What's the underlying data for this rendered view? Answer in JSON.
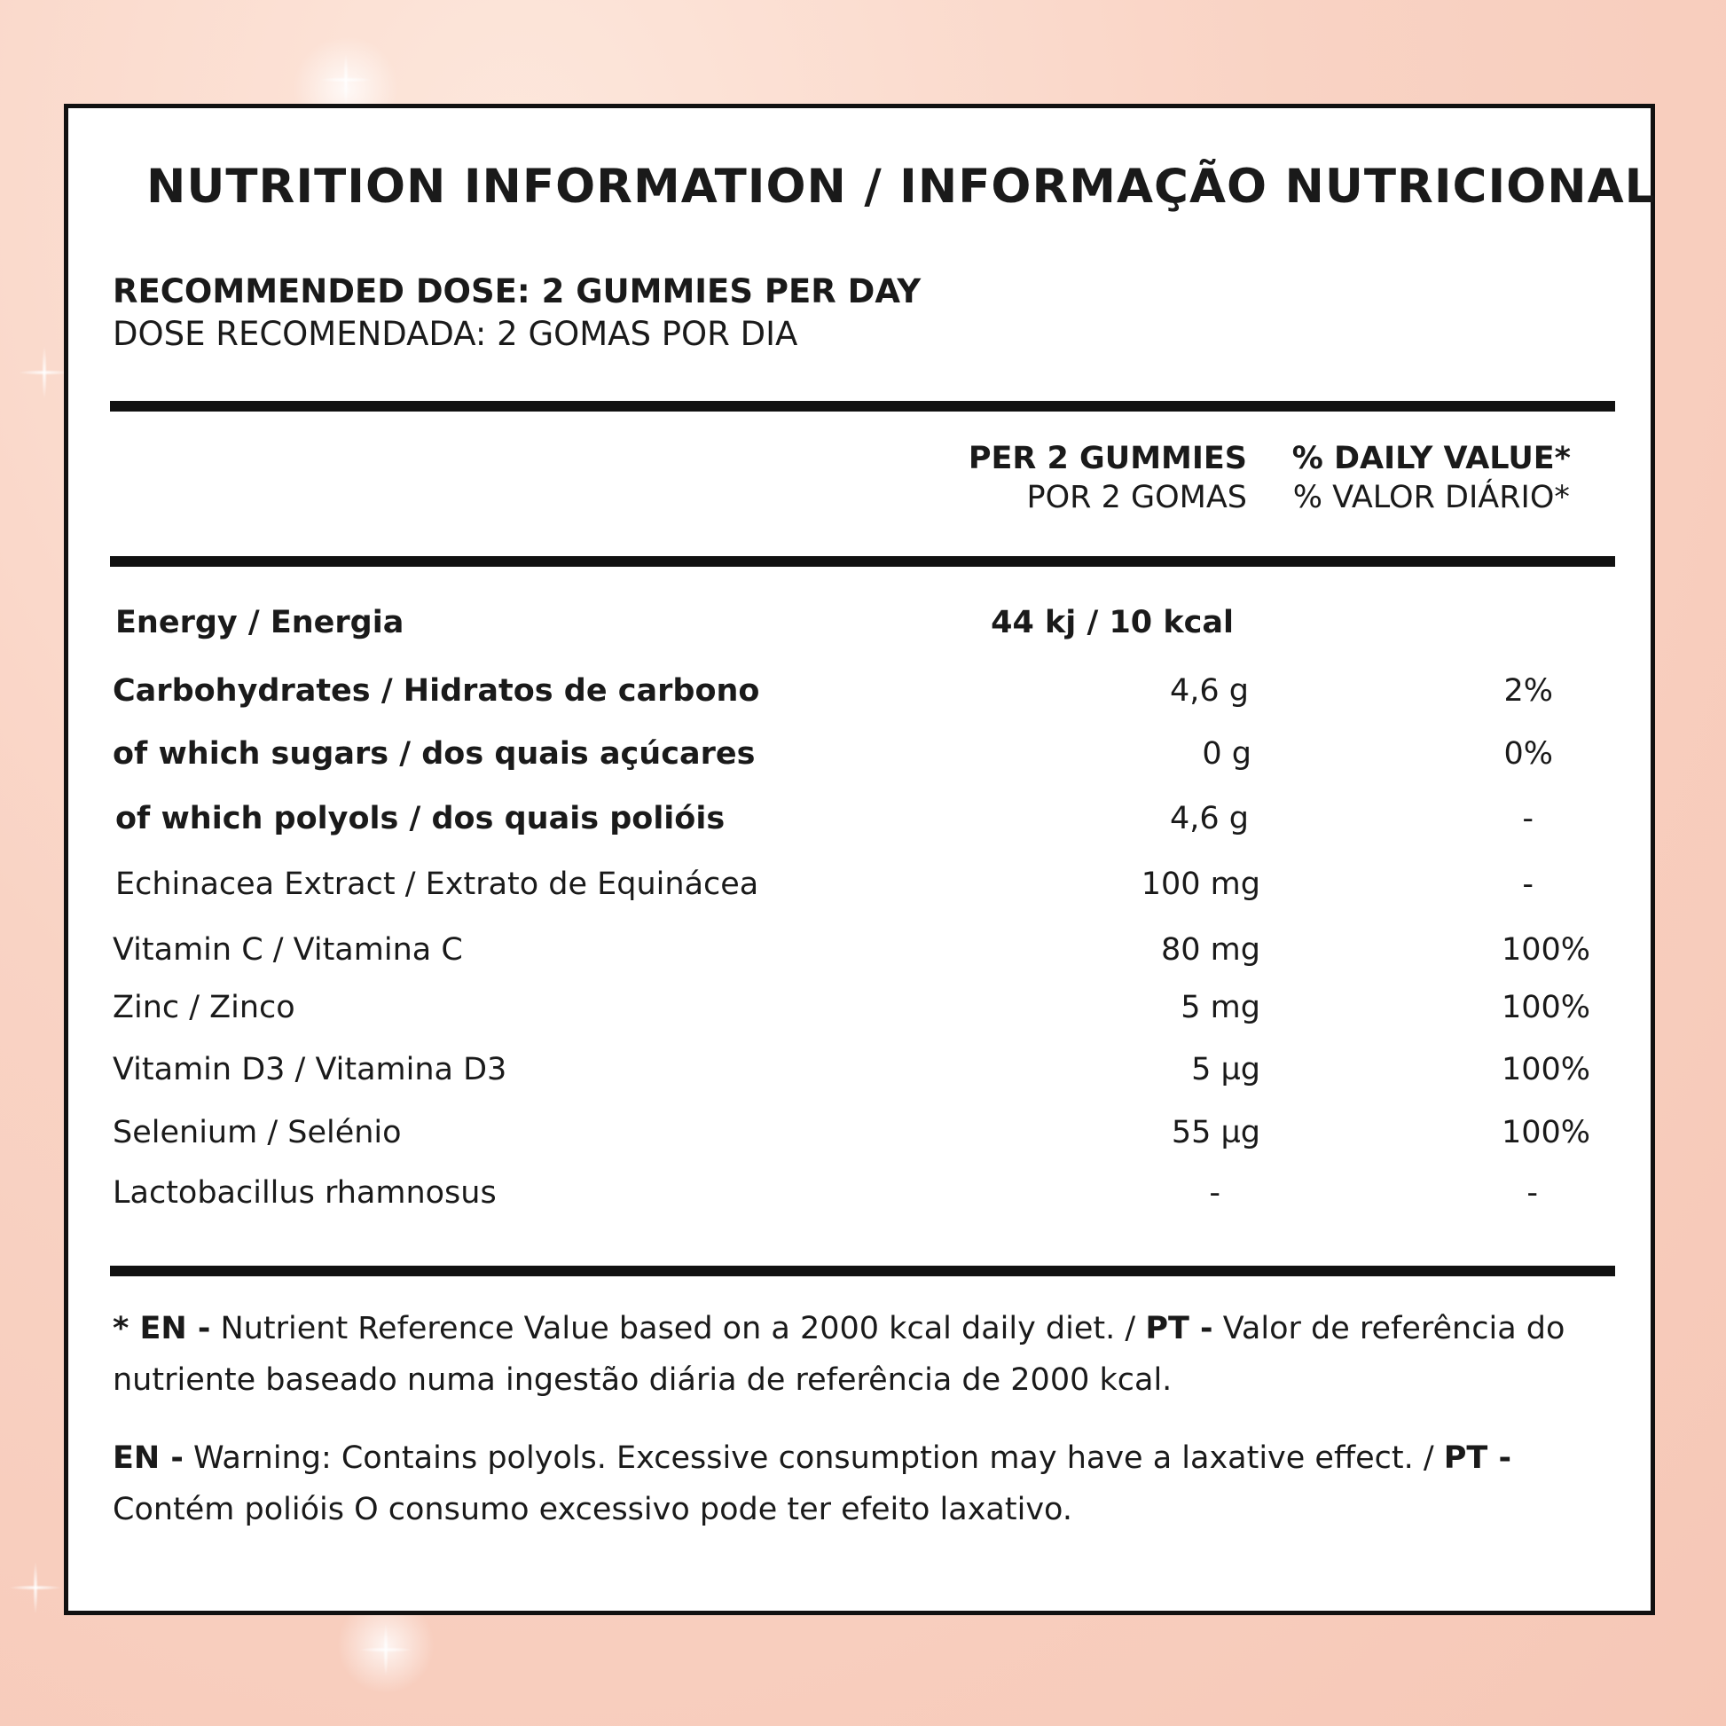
{
  "title": "NUTRITION INFORMATION / INFORMAÇÃO NUTRICIONAL",
  "dose": {
    "en": "RECOMMENDED DOSE: 2 GUMMIES PER DAY",
    "pt": "DOSE RECOMENDADA: 2 GOMAS POR DIA"
  },
  "columns": {
    "per_en": "PER 2 GUMMIES",
    "per_pt": "POR 2 GOMAS",
    "dv_en": "% DAILY VALUE*",
    "dv_pt": "% VALOR DIÁRIO*"
  },
  "rows": [
    {
      "name": "Energy / Energia",
      "amount": "44 kj / 10 kcal",
      "dv": ""
    },
    {
      "name": "Carbohydrates / Hidratos de carbono",
      "amount": "4,6 g",
      "dv": "2%"
    },
    {
      "name": "of which sugars / dos quais açúcares",
      "amount": "0 g",
      "dv": "0%"
    },
    {
      "name": "of which polyols / dos quais polióis",
      "amount": "4,6 g",
      "dv": "-"
    },
    {
      "name": "Echinacea Extract / Extrato de Equinácea",
      "amount": "100 mg",
      "dv": "-"
    },
    {
      "name": "Vitamin C / Vitamina C",
      "amount": "80 mg",
      "dv": "100%"
    },
    {
      "name": "Zinc / Zinco",
      "amount": "5 mg",
      "dv": "100%"
    },
    {
      "name": "Vitamin D3 / Vitamina D3",
      "amount": "5 µg",
      "dv": "100%"
    },
    {
      "name": "Selenium / Selénio",
      "amount": "55 µg",
      "dv": "100%"
    },
    {
      "name": "Lactobacillus rhamnosus",
      "amount": "-",
      "dv": "-"
    }
  ],
  "footnote1": {
    "en_tag": "* EN -",
    "en_text": " Nutrient Reference Value based on a 2000 kcal daily diet. / ",
    "pt_tag": "PT -",
    "pt_text": " Valor de referência do nutriente baseado numa ingestão diária de referência de 2000 kcal."
  },
  "footnote2": {
    "en_tag": "EN -",
    "en_text": " Warning: Contains polyols. Excessive consumption may have a laxative effect. / ",
    "pt_tag": "PT -",
    "pt_text": " Contém polióis O consumo excessivo pode ter efeito laxativo."
  }
}
